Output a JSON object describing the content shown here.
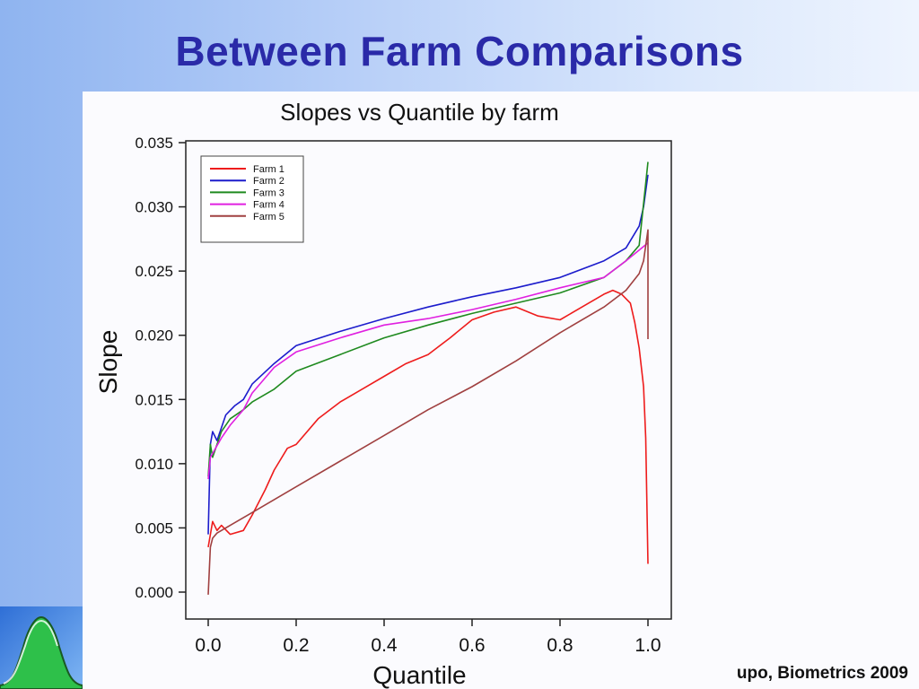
{
  "slide": {
    "title": "Between Farm Comparisons",
    "citation": "upo, Biometrics 2009"
  },
  "colors": {
    "title": "#2a2aa8",
    "farm1": "#ee1c1c",
    "farm2": "#1c1ccc",
    "farm3": "#1f8a1f",
    "farm4": "#e020e0",
    "farm5": "#a04040"
  },
  "logo": {
    "icon": "bell-curve-logo-icon"
  },
  "chart_data": {
    "type": "line",
    "title": "Slopes vs Quantile by farm",
    "xlabel": "Quantile",
    "ylabel": "Slope",
    "xlim": [
      0.0,
      1.0
    ],
    "ylim": [
      0.0,
      0.035
    ],
    "xticks": [
      "0.0",
      "0.2",
      "0.4",
      "0.6",
      "0.8",
      "1.0"
    ],
    "yticks": [
      "0.000",
      "0.005",
      "0.010",
      "0.015",
      "0.020",
      "0.025",
      "0.030",
      "0.035"
    ],
    "legend_position": "top-left",
    "grid": false,
    "series": [
      {
        "name": "Farm 1",
        "color": "#ee1c1c",
        "x": [
          0.0,
          0.01,
          0.02,
          0.03,
          0.05,
          0.08,
          0.1,
          0.13,
          0.15,
          0.18,
          0.2,
          0.25,
          0.3,
          0.35,
          0.4,
          0.45,
          0.5,
          0.55,
          0.6,
          0.65,
          0.7,
          0.75,
          0.8,
          0.85,
          0.9,
          0.92,
          0.94,
          0.96,
          0.97,
          0.98,
          0.99,
          0.995,
          1.0
        ],
        "y": [
          0.0035,
          0.0055,
          0.0048,
          0.0052,
          0.0045,
          0.0048,
          0.006,
          0.008,
          0.0095,
          0.0112,
          0.0115,
          0.0135,
          0.0148,
          0.0158,
          0.0168,
          0.0178,
          0.0185,
          0.0198,
          0.0212,
          0.0218,
          0.0222,
          0.0215,
          0.0212,
          0.0222,
          0.0232,
          0.0235,
          0.0232,
          0.0225,
          0.021,
          0.019,
          0.016,
          0.012,
          0.0022
        ]
      },
      {
        "name": "Farm 2",
        "color": "#1c1ccc",
        "x": [
          0.0,
          0.005,
          0.01,
          0.02,
          0.04,
          0.06,
          0.08,
          0.1,
          0.15,
          0.2,
          0.3,
          0.4,
          0.5,
          0.6,
          0.7,
          0.8,
          0.9,
          0.95,
          0.98,
          0.99,
          1.0
        ],
        "y": [
          0.0045,
          0.0115,
          0.0125,
          0.0118,
          0.0138,
          0.0145,
          0.015,
          0.0162,
          0.0178,
          0.0192,
          0.0203,
          0.0213,
          0.0222,
          0.023,
          0.0237,
          0.0245,
          0.0258,
          0.0268,
          0.0285,
          0.03,
          0.0325
        ]
      },
      {
        "name": "Farm 3",
        "color": "#1f8a1f",
        "x": [
          0.0,
          0.005,
          0.01,
          0.03,
          0.05,
          0.08,
          0.1,
          0.15,
          0.2,
          0.3,
          0.4,
          0.5,
          0.6,
          0.7,
          0.8,
          0.9,
          0.95,
          0.98,
          1.0
        ],
        "y": [
          0.009,
          0.0115,
          0.0105,
          0.0125,
          0.0135,
          0.0142,
          0.0148,
          0.0158,
          0.0172,
          0.0185,
          0.0198,
          0.0208,
          0.0217,
          0.0225,
          0.0233,
          0.0245,
          0.0258,
          0.027,
          0.0335
        ]
      },
      {
        "name": "Farm 4",
        "color": "#e020e0",
        "x": [
          0.0,
          0.005,
          0.01,
          0.03,
          0.05,
          0.08,
          0.1,
          0.15,
          0.2,
          0.3,
          0.4,
          0.5,
          0.6,
          0.7,
          0.8,
          0.9,
          0.95,
          1.0
        ],
        "y": [
          0.0088,
          0.0105,
          0.0108,
          0.012,
          0.013,
          0.0142,
          0.0155,
          0.0175,
          0.0187,
          0.0198,
          0.0208,
          0.0213,
          0.022,
          0.0228,
          0.0237,
          0.0245,
          0.0258,
          0.0272
        ]
      },
      {
        "name": "Farm 5",
        "color": "#a04040",
        "x": [
          0.0,
          0.005,
          0.01,
          0.02,
          0.03,
          0.05,
          0.1,
          0.2,
          0.3,
          0.4,
          0.5,
          0.6,
          0.7,
          0.8,
          0.9,
          0.95,
          0.98,
          0.99,
          1.0,
          1.0
        ],
        "y": [
          -0.0002,
          0.0035,
          0.0042,
          0.0046,
          0.0048,
          0.0052,
          0.0062,
          0.0082,
          0.0102,
          0.0122,
          0.0142,
          0.016,
          0.018,
          0.0202,
          0.0222,
          0.0235,
          0.0248,
          0.0258,
          0.0282,
          0.0197
        ]
      }
    ]
  }
}
